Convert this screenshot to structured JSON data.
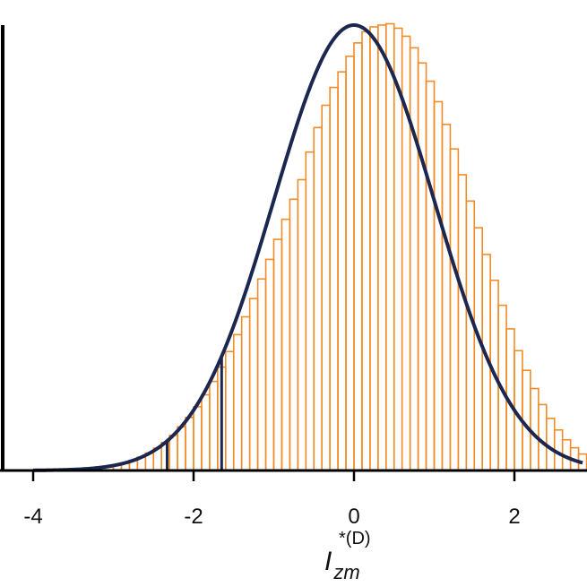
{
  "chart_data": {
    "type": "bar",
    "title": "",
    "xlabel": {
      "main": "I",
      "subscript": "zm",
      "superscript": "*(D)"
    },
    "ylabel": "",
    "xlim": [
      -4,
      2.85
    ],
    "ylim": [
      0,
      1.0
    ],
    "x_ticks": [
      -4,
      -2,
      0,
      2
    ],
    "x_tick_labels": [
      "-4",
      "-2",
      "0",
      "2"
    ],
    "grid": false,
    "colors": {
      "histogram": "#f28c28",
      "curve": "#1c2750",
      "axis": "#000000",
      "markers": "#1c2750"
    },
    "histogram": {
      "bin_width": 0.1,
      "bin_left_edges": [
        -3.8,
        -3.7,
        -3.6,
        -3.5,
        -3.4,
        -3.3,
        -3.2,
        -3.1,
        -3.0,
        -2.9,
        -2.8,
        -2.7,
        -2.6,
        -2.5,
        -2.4,
        -2.3,
        -2.2,
        -2.1,
        -2.0,
        -1.9,
        -1.8,
        -1.7,
        -1.6,
        -1.5,
        -1.4,
        -1.3,
        -1.2,
        -1.1,
        -1.0,
        -0.9,
        -0.8,
        -0.7,
        -0.6,
        -0.5,
        -0.4,
        -0.3,
        -0.2,
        -0.1,
        0.0,
        0.1,
        0.2,
        0.3,
        0.4,
        0.5,
        0.6,
        0.7,
        0.8,
        0.9,
        1.0,
        1.1,
        1.2,
        1.3,
        1.4,
        1.5,
        1.6,
        1.7,
        1.8,
        1.9,
        2.0,
        2.1,
        2.2,
        2.3,
        2.4,
        2.5,
        2.6,
        2.7,
        2.8
      ],
      "values": [
        0.0,
        0.001,
        0.001,
        0.002,
        0.003,
        0.004,
        0.006,
        0.008,
        0.012,
        0.016,
        0.022,
        0.03,
        0.039,
        0.05,
        0.063,
        0.079,
        0.098,
        0.119,
        0.143,
        0.17,
        0.2,
        0.232,
        0.267,
        0.305,
        0.345,
        0.386,
        0.43,
        0.474,
        0.519,
        0.564,
        0.609,
        0.653,
        0.715,
        0.77,
        0.82,
        0.86,
        0.895,
        0.93,
        0.96,
        0.985,
        0.996,
        1.0,
        1.003,
        0.993,
        0.975,
        0.949,
        0.915,
        0.874,
        0.828,
        0.777,
        0.722,
        0.664,
        0.605,
        0.545,
        0.485,
        0.427,
        0.371,
        0.318,
        0.269,
        0.225,
        0.184,
        0.148,
        0.117,
        0.091,
        0.069,
        0.051,
        0.037
      ]
    },
    "curve": {
      "name": "",
      "type": "normal",
      "mean": 0,
      "sd": 1,
      "peak_relative": 1.0
    },
    "markers": [
      {
        "x": -2.33,
        "height_relative": 0.066
      },
      {
        "x": -1.65,
        "height_relative": 0.257
      }
    ]
  }
}
